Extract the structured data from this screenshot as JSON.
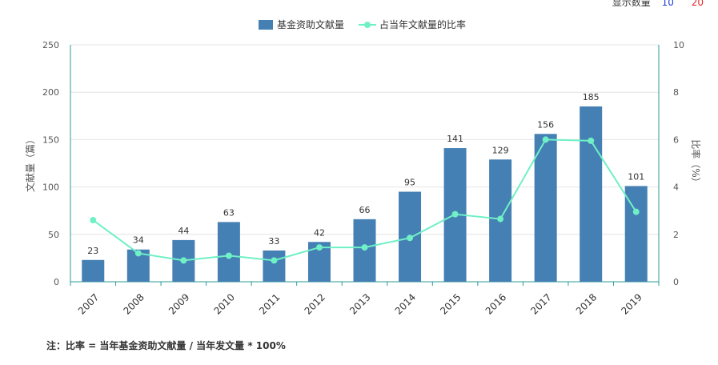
{
  "header": {
    "label": "显示数量",
    "value_a": "10",
    "value_b": "20",
    "color_a": "#1f3fd6",
    "color_b": "#e8262c"
  },
  "chart_data": {
    "type": "bar",
    "categories": [
      "2007",
      "2008",
      "2009",
      "2010",
      "2011",
      "2012",
      "2013",
      "2014",
      "2015",
      "2016",
      "2017",
      "2018",
      "2019"
    ],
    "series": [
      {
        "name": "基金资助文献量",
        "type": "bar",
        "axis": "left",
        "color": "#4580b4",
        "values": [
          23,
          34,
          44,
          63,
          33,
          42,
          66,
          95,
          141,
          129,
          156,
          185,
          101
        ]
      },
      {
        "name": "占当年文献量的比率",
        "type": "line",
        "axis": "right",
        "color": "#6ff0c6",
        "values": [
          2.6,
          1.2,
          0.9,
          1.1,
          0.9,
          1.45,
          1.45,
          1.85,
          2.85,
          2.65,
          6.0,
          5.95,
          2.95
        ]
      }
    ],
    "ylabel": "文献量（篇）",
    "ylim": [
      0,
      250
    ],
    "yticks": [
      0,
      50,
      100,
      150,
      200,
      250
    ],
    "y2label": "比率（%）",
    "y2lim": [
      0,
      10
    ],
    "y2ticks": [
      0,
      2,
      4,
      6,
      8,
      10
    ],
    "legend_position": "top-center",
    "grid": true,
    "bar_data_labels": true
  },
  "note": "注：比率 = 当年基金资助文献量 / 当年发文量 * 100%"
}
